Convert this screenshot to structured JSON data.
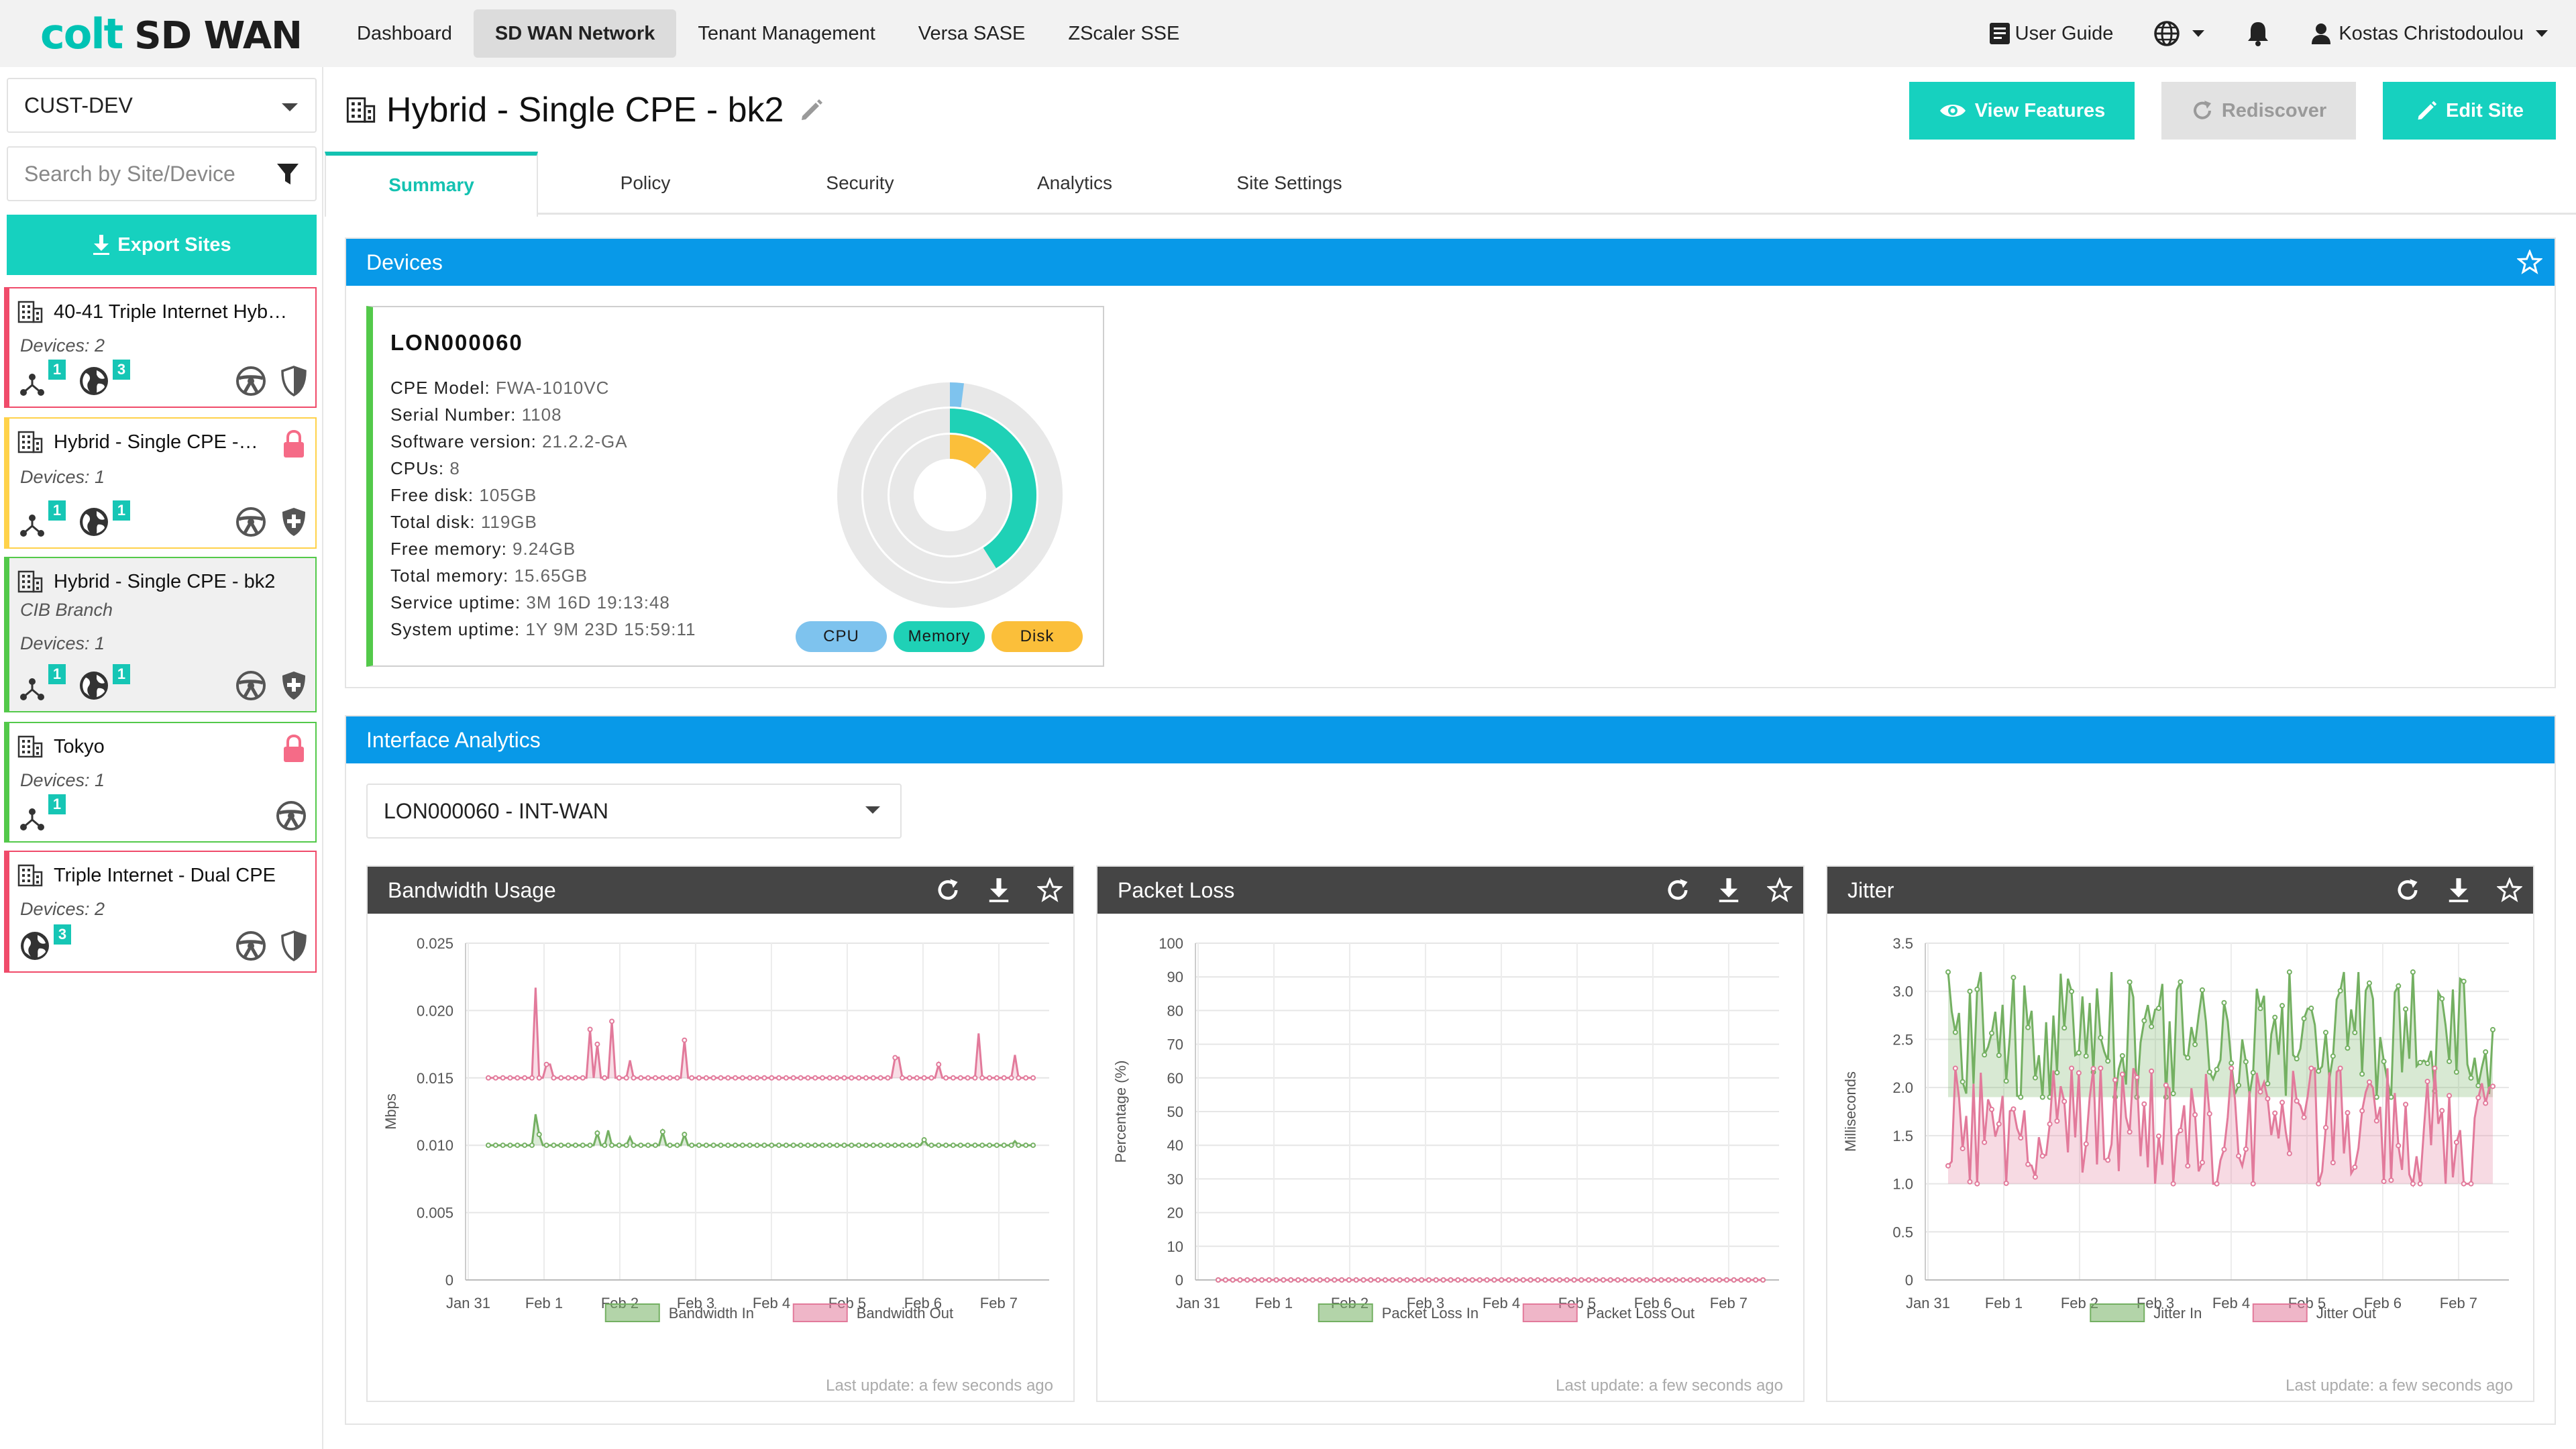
{
  "brand": {
    "logo_colt": "colt",
    "logo_product": "SD WAN",
    "accent": "#16d1bf",
    "blue": "#0899e8"
  },
  "nav": {
    "items": [
      {
        "label": "Dashboard"
      },
      {
        "label": "SD WAN Network",
        "active": true
      },
      {
        "label": "Tenant Management"
      },
      {
        "label": "Versa SASE"
      },
      {
        "label": "ZScaler SSE"
      }
    ],
    "user_guide": "User Guide",
    "language_icon": "globe-icon",
    "notifications_icon": "bell-icon",
    "user_name": "Kostas Christodoulou"
  },
  "sidebar": {
    "customer": "CUST-DEV",
    "search_placeholder": "Search by Site/Device",
    "export_label": "Export Sites",
    "sites": [
      {
        "name": "40-41 Triple Internet Hyb…",
        "devices": "Devices: 2",
        "status": "red",
        "net_badge": "1",
        "globe_badge": "3",
        "shield": "shield-half-icon"
      },
      {
        "name": "Hybrid - Single CPE -…",
        "devices": "Devices: 1",
        "status": "yellow",
        "net_badge": "1",
        "globe_badge": "1",
        "locked": true,
        "shield": "shield-plus-icon"
      },
      {
        "name": "Hybrid - Single CPE - bk2",
        "subtitle": "CIB Branch",
        "devices": "Devices: 1",
        "status": "green",
        "net_badge": "1",
        "globe_badge": "1",
        "shield": "shield-plus-icon"
      },
      {
        "name": "Tokyo",
        "devices": "Devices: 1",
        "status": "green",
        "net_badge": "1",
        "locked": true
      },
      {
        "name": "Triple Internet - Dual CPE",
        "devices": "Devices: 2",
        "status": "red",
        "globe_badge": "3",
        "shield": "shield-half-icon"
      }
    ]
  },
  "header": {
    "title": "Hybrid - Single CPE - bk2",
    "view_features": "View Features",
    "rediscover": "Rediscover",
    "edit_site": "Edit Site"
  },
  "tabs": [
    {
      "label": "Summary",
      "active": true
    },
    {
      "label": "Policy"
    },
    {
      "label": "Security"
    },
    {
      "label": "Analytics"
    },
    {
      "label": "Site Settings"
    }
  ],
  "devices_panel": {
    "title": "Devices",
    "device": {
      "name": "LON000060",
      "fields": [
        {
          "label": "CPE Model:",
          "value": "FWA-1010VC"
        },
        {
          "label": "Serial Number:",
          "value": "1108"
        },
        {
          "label": "Software version:",
          "value": "21.2.2-GA"
        },
        {
          "label": "CPUs:",
          "value": "8"
        },
        {
          "label": "Free disk:",
          "value": "105GB"
        },
        {
          "label": "Total disk:",
          "value": "119GB"
        },
        {
          "label": "Free memory:",
          "value": "9.24GB"
        },
        {
          "label": "Total memory:",
          "value": "15.65GB"
        },
        {
          "label": "Service uptime:",
          "value": "3M 16D 19:13:48"
        },
        {
          "label": "System uptime:",
          "value": "1Y 9M 23D 15:59:11"
        }
      ],
      "usage": [
        {
          "name": "CPU",
          "percent": 2,
          "color": "#7ec3ee"
        },
        {
          "name": "Memory",
          "percent": 41,
          "color": "#1fd1b6"
        },
        {
          "name": "Disk",
          "percent": 12,
          "color": "#fbbf3a"
        }
      ]
    }
  },
  "interface_panel": {
    "title": "Interface Analytics",
    "selected_interface": "LON000060 - INT-WAN",
    "last_update": "Last update: a few seconds ago"
  },
  "chart_data": [
    {
      "type": "line",
      "title": "Bandwidth Usage",
      "ylabel": "Mbps",
      "ylim": [
        0,
        0.025
      ],
      "yticks": [
        "0",
        "0.005",
        "0.010",
        "0.015",
        "0.020",
        "0.025"
      ],
      "x_labels": [
        "Jan 31",
        "Feb 1",
        "Feb 2",
        "Feb 3",
        "Feb 4",
        "Feb 5",
        "Feb 6",
        "Feb 7"
      ],
      "series": [
        {
          "name": "Bandwidth In",
          "color": "#74b062",
          "baseline": 0.01,
          "spikes": [
            [
              0.085,
              0.0123
            ],
            [
              0.095,
              0.0108
            ],
            [
              0.2,
              0.0109
            ],
            [
              0.222,
              0.0111
            ],
            [
              0.26,
              0.0106
            ],
            [
              0.32,
              0.011
            ],
            [
              0.36,
              0.0108
            ],
            [
              0.37,
              0.0105
            ],
            [
              0.8,
              0.0104
            ],
            [
              0.965,
              0.0103
            ]
          ]
        },
        {
          "name": "Bandwidth Out",
          "color": "#e27a9b",
          "baseline": 0.015,
          "spikes": [
            [
              0.07,
              0.015
            ],
            [
              0.085,
              0.0217
            ],
            [
              0.11,
              0.016
            ],
            [
              0.185,
              0.0186
            ],
            [
              0.2,
              0.0175
            ],
            [
              0.225,
              0.0192
            ],
            [
              0.26,
              0.0163
            ],
            [
              0.36,
              0.0178
            ],
            [
              0.37,
              0.0214
            ],
            [
              0.75,
              0.0165
            ],
            [
              0.83,
              0.016
            ],
            [
              0.9,
              0.0183
            ],
            [
              0.965,
              0.0167
            ]
          ]
        }
      ]
    },
    {
      "type": "line",
      "title": "Packet Loss",
      "ylabel": "Percentage (%)",
      "ylim": [
        0,
        100
      ],
      "yticks": [
        "0",
        "10",
        "20",
        "30",
        "40",
        "50",
        "60",
        "70",
        "80",
        "90",
        "100"
      ],
      "x_labels": [
        "Jan 31",
        "Feb 1",
        "Feb 2",
        "Feb 3",
        "Feb 4",
        "Feb 5",
        "Feb 6",
        "Feb 7"
      ],
      "series": [
        {
          "name": "Packet Loss In",
          "color": "#74b062",
          "baseline": 0,
          "spikes": []
        },
        {
          "name": "Packet Loss Out",
          "color": "#e27a9b",
          "baseline": 0,
          "spikes": []
        }
      ]
    },
    {
      "type": "line",
      "title": "Jitter",
      "ylabel": "Milliseconds",
      "ylim": [
        0,
        3.5
      ],
      "yticks": [
        "0",
        "0.5",
        "1.0",
        "1.5",
        "2.0",
        "2.5",
        "3.0",
        "3.5"
      ],
      "x_labels": [
        "Jan 31",
        "Feb 1",
        "Feb 2",
        "Feb 3",
        "Feb 4",
        "Feb 5",
        "Feb 6",
        "Feb 7"
      ],
      "series": [
        {
          "name": "Jitter In",
          "color": "#74b062",
          "noisy": true,
          "range": [
            1.9,
            3.2
          ]
        },
        {
          "name": "Jitter Out",
          "color": "#e27a9b",
          "noisy": true,
          "range": [
            1.0,
            2.2
          ]
        }
      ]
    }
  ]
}
